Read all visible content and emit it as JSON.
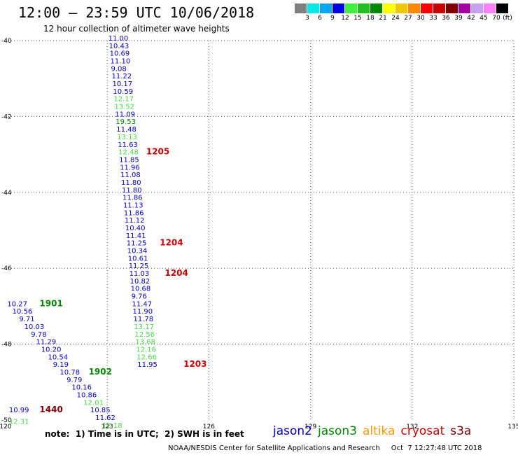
{
  "header": {
    "title": "12:00 — 23:59 UTC 10/06/2018",
    "subtitle": "12 hour collection of altimeter wave heights"
  },
  "legend": {
    "unit": "(ft)",
    "bins": [
      {
        "label": "3",
        "color": "#808080"
      },
      {
        "label": "6",
        "color": "#00e8e8"
      },
      {
        "label": "9",
        "color": "#00a8f0"
      },
      {
        "label": "12",
        "color": "#0000e8"
      },
      {
        "label": "15",
        "color": "#40f040"
      },
      {
        "label": "18",
        "color": "#20c020"
      },
      {
        "label": "21",
        "color": "#008800"
      },
      {
        "label": "24",
        "color": "#ffff00"
      },
      {
        "label": "27",
        "color": "#f0c800"
      },
      {
        "label": "30",
        "color": "#ff8800"
      },
      {
        "label": "33",
        "color": "#ff0000"
      },
      {
        "label": "36",
        "color": "#c80000"
      },
      {
        "label": "39",
        "color": "#800000"
      },
      {
        "label": "42",
        "color": "#a000a0"
      },
      {
        "label": "45",
        "color": "#c8a0f0"
      },
      {
        "label": "70",
        "color": "#ff80ff"
      },
      {
        "label": "",
        "color": "#000000"
      }
    ]
  },
  "map": {
    "lon_range": [
      120,
      135
    ],
    "lat_range": [
      -50,
      -40
    ],
    "lon_ticks": [
      "120",
      "123",
      "126",
      "129",
      "132",
      "135"
    ],
    "lat_ticks": [
      "-40",
      "-42",
      "-44",
      "-46",
      "-48",
      "-50"
    ],
    "satellite_colors": {
      "jason2": "#0000cc",
      "jason3": "#008800",
      "jason3_light": "#44dd44",
      "altika": "#ff9900",
      "cryosat": "#cc0000",
      "s3a": "#800000"
    },
    "observations": [
      {
        "lon": 123.03,
        "lat": -40.0,
        "text": "11.00",
        "sat": "jason2"
      },
      {
        "lon": 123.05,
        "lat": -40.2,
        "text": "10.43",
        "sat": "jason2"
      },
      {
        "lon": 123.07,
        "lat": -40.4,
        "text": "10.69",
        "sat": "jason2"
      },
      {
        "lon": 123.09,
        "lat": -40.6,
        "text": "11.10",
        "sat": "jason2"
      },
      {
        "lon": 123.11,
        "lat": -40.8,
        "text": "9.08",
        "sat": "jason2"
      },
      {
        "lon": 123.13,
        "lat": -41.0,
        "text": "11.22",
        "sat": "jason2"
      },
      {
        "lon": 123.15,
        "lat": -41.2,
        "text": "10.17",
        "sat": "jason2"
      },
      {
        "lon": 123.17,
        "lat": -41.4,
        "text": "10.59",
        "sat": "jason2"
      },
      {
        "lon": 123.19,
        "lat": -41.6,
        "text": "12.17",
        "sat": "jason3_light"
      },
      {
        "lon": 123.21,
        "lat": -41.8,
        "text": "13.52",
        "sat": "jason3_light"
      },
      {
        "lon": 123.23,
        "lat": -42.0,
        "text": "11.09",
        "sat": "jason2"
      },
      {
        "lon": 123.25,
        "lat": -42.2,
        "text": "19.53",
        "sat": "jason3"
      },
      {
        "lon": 123.27,
        "lat": -42.4,
        "text": "11.48",
        "sat": "jason2"
      },
      {
        "lon": 123.29,
        "lat": -42.6,
        "text": "13.13",
        "sat": "jason3_light"
      },
      {
        "lon": 123.31,
        "lat": -42.8,
        "text": "11.63",
        "sat": "jason2"
      },
      {
        "lon": 123.33,
        "lat": -43.0,
        "text": "12.48",
        "sat": "jason3_light"
      },
      {
        "lon": 123.35,
        "lat": -43.2,
        "text": "11.85",
        "sat": "jason2"
      },
      {
        "lon": 123.37,
        "lat": -43.4,
        "text": "11.96",
        "sat": "jason2"
      },
      {
        "lon": 123.39,
        "lat": -43.6,
        "text": "11.08",
        "sat": "jason2"
      },
      {
        "lon": 123.41,
        "lat": -43.8,
        "text": "11.80",
        "sat": "jason2"
      },
      {
        "lon": 123.43,
        "lat": -44.0,
        "text": "11.80",
        "sat": "jason2"
      },
      {
        "lon": 123.45,
        "lat": -44.2,
        "text": "11.86",
        "sat": "jason2"
      },
      {
        "lon": 123.47,
        "lat": -44.4,
        "text": "11.13",
        "sat": "jason2"
      },
      {
        "lon": 123.49,
        "lat": -44.6,
        "text": "11.86",
        "sat": "jason2"
      },
      {
        "lon": 123.51,
        "lat": -44.8,
        "text": "11.12",
        "sat": "jason2"
      },
      {
        "lon": 123.53,
        "lat": -45.0,
        "text": "10.40",
        "sat": "jason2"
      },
      {
        "lon": 123.55,
        "lat": -45.2,
        "text": "11.41",
        "sat": "jason2"
      },
      {
        "lon": 123.57,
        "lat": -45.4,
        "text": "11.25",
        "sat": "jason2"
      },
      {
        "lon": 123.59,
        "lat": -45.6,
        "text": "10.34",
        "sat": "jason2"
      },
      {
        "lon": 123.61,
        "lat": -45.8,
        "text": "10.61",
        "sat": "jason2"
      },
      {
        "lon": 123.63,
        "lat": -46.0,
        "text": "11.25",
        "sat": "jason2"
      },
      {
        "lon": 123.65,
        "lat": -46.2,
        "text": "11.03",
        "sat": "jason2"
      },
      {
        "lon": 123.67,
        "lat": -46.4,
        "text": "10.82",
        "sat": "jason2"
      },
      {
        "lon": 123.69,
        "lat": -46.6,
        "text": "10.68",
        "sat": "jason2"
      },
      {
        "lon": 123.71,
        "lat": -46.8,
        "text": "9.76",
        "sat": "jason2"
      },
      {
        "lon": 123.73,
        "lat": -47.0,
        "text": "11.47",
        "sat": "jason2"
      },
      {
        "lon": 123.75,
        "lat": -47.2,
        "text": "11.90",
        "sat": "jason2"
      },
      {
        "lon": 123.77,
        "lat": -47.4,
        "text": "11.78",
        "sat": "jason2"
      },
      {
        "lon": 123.79,
        "lat": -47.6,
        "text": "13.17",
        "sat": "jason3_light"
      },
      {
        "lon": 123.81,
        "lat": -47.8,
        "text": "12.56",
        "sat": "jason3_light"
      },
      {
        "lon": 123.83,
        "lat": -48.0,
        "text": "13.68",
        "sat": "jason3_light"
      },
      {
        "lon": 123.85,
        "lat": -48.2,
        "text": "12.16",
        "sat": "jason3_light"
      },
      {
        "lon": 123.87,
        "lat": -48.4,
        "text": "12.66",
        "sat": "jason3_light"
      },
      {
        "lon": 123.89,
        "lat": -48.6,
        "text": "11.95",
        "sat": "jason2"
      },
      {
        "lon": 120.05,
        "lat": -47.0,
        "text": "10.27",
        "sat": "jason2"
      },
      {
        "lon": 120.2,
        "lat": -47.2,
        "text": "10.56",
        "sat": "jason2"
      },
      {
        "lon": 120.4,
        "lat": -47.4,
        "text": "9.71",
        "sat": "jason2"
      },
      {
        "lon": 120.55,
        "lat": -47.6,
        "text": "10.03",
        "sat": "jason2"
      },
      {
        "lon": 120.75,
        "lat": -47.8,
        "text": "9.78",
        "sat": "jason2"
      },
      {
        "lon": 120.9,
        "lat": -48.0,
        "text": "11.29",
        "sat": "jason2"
      },
      {
        "lon": 121.05,
        "lat": -48.2,
        "text": "10.20",
        "sat": "jason2"
      },
      {
        "lon": 121.25,
        "lat": -48.4,
        "text": "10.54",
        "sat": "jason2"
      },
      {
        "lon": 121.4,
        "lat": -48.6,
        "text": "9.19",
        "sat": "jason2"
      },
      {
        "lon": 121.6,
        "lat": -48.8,
        "text": "10.78",
        "sat": "jason2"
      },
      {
        "lon": 121.8,
        "lat": -49.0,
        "text": "9.79",
        "sat": "jason2"
      },
      {
        "lon": 121.95,
        "lat": -49.2,
        "text": "10.16",
        "sat": "jason2"
      },
      {
        "lon": 122.1,
        "lat": -49.4,
        "text": "10.86",
        "sat": "jason2"
      },
      {
        "lon": 122.3,
        "lat": -49.6,
        "text": "12.01",
        "sat": "jason3_light"
      },
      {
        "lon": 122.5,
        "lat": -49.8,
        "text": "10.85",
        "sat": "jason2"
      },
      {
        "lon": 122.65,
        "lat": -50.0,
        "text": "11.62",
        "sat": "jason2"
      },
      {
        "lon": 122.85,
        "lat": -50.2,
        "text": "12.18",
        "sat": "jason3_light"
      },
      {
        "lon": 120.1,
        "lat": -49.8,
        "text": "10.99",
        "sat": "jason2"
      },
      {
        "lon": 120.1,
        "lat": -50.1,
        "text": "12.31",
        "sat": "jason3_light"
      }
    ],
    "pass_labels": [
      {
        "lon": 124.15,
        "lat": -43.0,
        "text": "1205",
        "sat": "cryosat"
      },
      {
        "lon": 124.55,
        "lat": -45.4,
        "text": "1204",
        "sat": "cryosat"
      },
      {
        "lon": 124.7,
        "lat": -46.2,
        "text": "1204",
        "sat": "cryosat"
      },
      {
        "lon": 125.25,
        "lat": -48.6,
        "text": "1203",
        "sat": "cryosat"
      },
      {
        "lon": 121.0,
        "lat": -47.0,
        "text": "1901",
        "sat": "jason3"
      },
      {
        "lon": 122.45,
        "lat": -48.8,
        "text": "1902",
        "sat": "jason3"
      },
      {
        "lon": 121.0,
        "lat": -49.8,
        "text": "1440",
        "sat": "s3a"
      }
    ]
  },
  "note": "note:  1) Time is in UTC;  2) SWH is in feet",
  "satellites": [
    {
      "name": "jason2",
      "color": "#0000cc"
    },
    {
      "name": "jason3",
      "color": "#008800"
    },
    {
      "name": "altika",
      "color": "#ff9900"
    },
    {
      "name": "cryosat",
      "color": "#cc0000"
    },
    {
      "name": "s3a",
      "color": "#800000"
    }
  ],
  "footer": "NOAA/NESDIS Center for Satellite Applications and Research     Oct  7 12:27:48 UTC 2018"
}
